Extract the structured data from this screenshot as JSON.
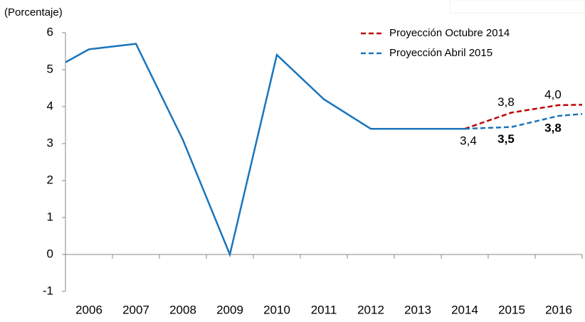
{
  "chart_data": {
    "type": "line",
    "ylabel": "(Porcentaje)",
    "xlim": [
      2005.5,
      2016.5
    ],
    "xticks": [
      2006,
      2007,
      2008,
      2009,
      2010,
      2011,
      2012,
      2013,
      2014,
      2015,
      2016
    ],
    "ylim": [
      -1,
      6
    ],
    "yticks": [
      -1,
      0,
      1,
      2,
      3,
      4,
      5,
      6
    ],
    "legend": "upper right",
    "series": [
      {
        "color": "#1a75bc",
        "dashed": false,
        "x": [
          2005.5,
          2006,
          2007,
          2008,
          2009,
          2010,
          2011,
          2012,
          2013,
          2014
        ],
        "values": [
          5.2,
          5.55,
          5.7,
          3.1,
          0.0,
          5.4,
          4.2,
          3.4,
          3.4,
          3.4
        ]
      },
      {
        "name": "Proyección Octubre 2014",
        "color": "#c00000",
        "dashed": true,
        "label_color": "#c00000",
        "x": [
          2014,
          2015,
          2016,
          2016.5
        ],
        "values": [
          3.4,
          3.84,
          4.04,
          4.05
        ],
        "value_labels": [
          null,
          "3,8",
          "4,0",
          null
        ]
      },
      {
        "name": "Proyección Abril 2015",
        "color": "#1a75bc",
        "dashed": true,
        "label_color": "#1f3864",
        "x": [
          2014,
          2015,
          2016,
          2016.5
        ],
        "values": [
          3.4,
          3.45,
          3.75,
          3.8
        ],
        "value_labels": [
          "3,4",
          "3,5",
          "3,8",
          null
        ]
      }
    ]
  }
}
